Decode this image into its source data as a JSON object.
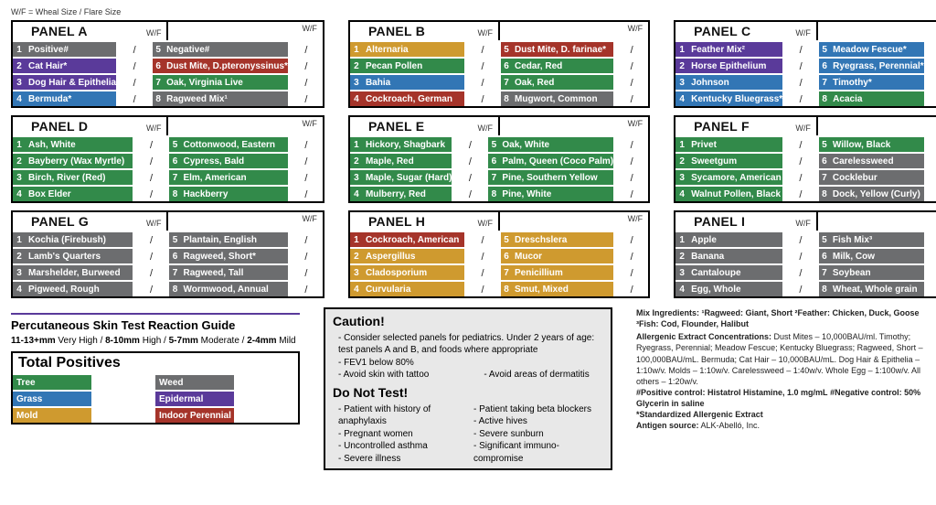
{
  "legend_top": "W/F = Wheal Size / Flare Size",
  "wf_header": "W/F",
  "wf_cell": "/",
  "colors": {
    "gray": "#6c6d6f",
    "purple": "#5a3a9a",
    "blue": "#3276b5",
    "green": "#328a4a",
    "red": "#a5342a",
    "gold": "#cf9a2f"
  },
  "panels": [
    {
      "title": "PANEL A",
      "left": [
        {
          "n": "1",
          "t": "Positive#",
          "c": "gray"
        },
        {
          "n": "2",
          "t": "Cat Hair*",
          "c": "purple"
        },
        {
          "n": "3",
          "t": "Dog Hair & Epithelia",
          "c": "purple"
        },
        {
          "n": "4",
          "t": "Bermuda*",
          "c": "blue"
        }
      ],
      "right": [
        {
          "n": "5",
          "t": "Negative#",
          "c": "gray"
        },
        {
          "n": "6",
          "t": "Dust Mite, D.pteronyssinus*",
          "c": "red"
        },
        {
          "n": "7",
          "t": "Oak, Virginia Live",
          "c": "green"
        },
        {
          "n": "8",
          "t": "Ragweed Mix¹",
          "c": "gray"
        }
      ]
    },
    {
      "title": "PANEL B",
      "left": [
        {
          "n": "1",
          "t": "Alternaria",
          "c": "gold"
        },
        {
          "n": "2",
          "t": "Pecan Pollen",
          "c": "green"
        },
        {
          "n": "3",
          "t": "Bahia",
          "c": "blue"
        },
        {
          "n": "4",
          "t": "Cockroach, German",
          "c": "red"
        }
      ],
      "right": [
        {
          "n": "5",
          "t": "Dust Mite, D. farinae*",
          "c": "red"
        },
        {
          "n": "6",
          "t": "Cedar, Red",
          "c": "green"
        },
        {
          "n": "7",
          "t": "Oak, Red",
          "c": "green"
        },
        {
          "n": "8",
          "t": "Mugwort, Common",
          "c": "gray"
        }
      ]
    },
    {
      "title": "PANEL C",
      "left": [
        {
          "n": "1",
          "t": "Feather Mix²",
          "c": "purple"
        },
        {
          "n": "2",
          "t": "Horse Epithelium",
          "c": "purple"
        },
        {
          "n": "3",
          "t": "Johnson",
          "c": "blue"
        },
        {
          "n": "4",
          "t": "Kentucky Bluegrass*",
          "c": "blue"
        }
      ],
      "right": [
        {
          "n": "5",
          "t": "Meadow Fescue*",
          "c": "blue"
        },
        {
          "n": "6",
          "t": "Ryegrass, Perennial*",
          "c": "blue"
        },
        {
          "n": "7",
          "t": "Timothy*",
          "c": "blue"
        },
        {
          "n": "8",
          "t": "Acacia",
          "c": "green"
        }
      ]
    },
    {
      "title": "PANEL D",
      "left": [
        {
          "n": "1",
          "t": "Ash, White",
          "c": "green"
        },
        {
          "n": "2",
          "t": "Bayberry (Wax Myrtle)",
          "c": "green"
        },
        {
          "n": "3",
          "t": "Birch, River (Red)",
          "c": "green"
        },
        {
          "n": "4",
          "t": "Box Elder",
          "c": "green"
        }
      ],
      "right": [
        {
          "n": "5",
          "t": "Cottonwood, Eastern",
          "c": "green"
        },
        {
          "n": "6",
          "t": "Cypress, Bald",
          "c": "green"
        },
        {
          "n": "7",
          "t": "Elm, American",
          "c": "green"
        },
        {
          "n": "8",
          "t": "Hackberry",
          "c": "green"
        }
      ]
    },
    {
      "title": "PANEL E",
      "left": [
        {
          "n": "1",
          "t": "Hickory, Shagbark",
          "c": "green"
        },
        {
          "n": "2",
          "t": "Maple, Red",
          "c": "green"
        },
        {
          "n": "3",
          "t": "Maple, Sugar (Hard)",
          "c": "green"
        },
        {
          "n": "4",
          "t": "Mulberry, Red",
          "c": "green"
        }
      ],
      "right": [
        {
          "n": "5",
          "t": "Oak, White",
          "c": "green"
        },
        {
          "n": "6",
          "t": "Palm, Queen (Coco Palm)",
          "c": "green"
        },
        {
          "n": "7",
          "t": "Pine, Southern Yellow",
          "c": "green"
        },
        {
          "n": "8",
          "t": "Pine, White",
          "c": "green"
        }
      ]
    },
    {
      "title": "PANEL F",
      "left": [
        {
          "n": "1",
          "t": "Privet",
          "c": "green"
        },
        {
          "n": "2",
          "t": "Sweetgum",
          "c": "green"
        },
        {
          "n": "3",
          "t": "Sycamore, American",
          "c": "green"
        },
        {
          "n": "4",
          "t": "Walnut Pollen, Black",
          "c": "green"
        }
      ],
      "right": [
        {
          "n": "5",
          "t": "Willow, Black",
          "c": "green"
        },
        {
          "n": "6",
          "t": "Carelessweed",
          "c": "gray"
        },
        {
          "n": "7",
          "t": "Cocklebur",
          "c": "gray"
        },
        {
          "n": "8",
          "t": "Dock, Yellow (Curly)",
          "c": "gray"
        }
      ]
    },
    {
      "title": "PANEL G",
      "left": [
        {
          "n": "1",
          "t": "Kochia (Firebush)",
          "c": "gray"
        },
        {
          "n": "2",
          "t": "Lamb's Quarters",
          "c": "gray"
        },
        {
          "n": "3",
          "t": "Marshelder, Burweed",
          "c": "gray"
        },
        {
          "n": "4",
          "t": "Pigweed, Rough",
          "c": "gray"
        }
      ],
      "right": [
        {
          "n": "5",
          "t": "Plantain, English",
          "c": "gray"
        },
        {
          "n": "6",
          "t": "Ragweed, Short*",
          "c": "gray"
        },
        {
          "n": "7",
          "t": "Ragweed, Tall",
          "c": "gray"
        },
        {
          "n": "8",
          "t": "Wormwood, Annual",
          "c": "gray"
        }
      ]
    },
    {
      "title": "PANEL H",
      "left": [
        {
          "n": "1",
          "t": "Cockroach, American",
          "c": "red"
        },
        {
          "n": "2",
          "t": "Aspergillus",
          "c": "gold"
        },
        {
          "n": "3",
          "t": "Cladosporium",
          "c": "gold"
        },
        {
          "n": "4",
          "t": "Curvularia",
          "c": "gold"
        }
      ],
      "right": [
        {
          "n": "5",
          "t": "Dreschslera",
          "c": "gold"
        },
        {
          "n": "6",
          "t": "Mucor",
          "c": "gold"
        },
        {
          "n": "7",
          "t": "Penicillium",
          "c": "gold"
        },
        {
          "n": "8",
          "t": "Smut, Mixed",
          "c": "gold"
        }
      ]
    },
    {
      "title": "PANEL I",
      "left": [
        {
          "n": "1",
          "t": "Apple",
          "c": "gray"
        },
        {
          "n": "2",
          "t": "Banana",
          "c": "gray"
        },
        {
          "n": "3",
          "t": "Cantaloupe",
          "c": "gray"
        },
        {
          "n": "4",
          "t": "Egg, Whole",
          "c": "gray"
        }
      ],
      "right": [
        {
          "n": "5",
          "t": "Fish Mix³",
          "c": "gray"
        },
        {
          "n": "6",
          "t": "Milk, Cow",
          "c": "gray"
        },
        {
          "n": "7",
          "t": "Soybean",
          "c": "gray"
        },
        {
          "n": "8",
          "t": "Wheat, Whole grain",
          "c": "gray"
        }
      ]
    }
  ],
  "reaction_guide": {
    "title": "Percutaneous Skin Test Reaction Guide",
    "levels": [
      {
        "range": "11-13+mm",
        "label": "Very High"
      },
      {
        "range": "8-10mm",
        "label": "High"
      },
      {
        "range": "5-7mm",
        "label": "Moderate"
      },
      {
        "range": "2-4mm",
        "label": "Mild"
      }
    ]
  },
  "totals": {
    "title": "Total Positives",
    "rows_left": [
      {
        "t": "Tree",
        "c": "green"
      },
      {
        "t": "Grass",
        "c": "blue"
      },
      {
        "t": "Mold",
        "c": "gold"
      }
    ],
    "rows_right": [
      {
        "t": "Weed",
        "c": "gray"
      },
      {
        "t": "Epidermal",
        "c": "purple"
      },
      {
        "t": "Indoor Perennial",
        "c": "red"
      }
    ]
  },
  "caution": {
    "title": "Caution!",
    "items": [
      "Consider selected panels for pediatrics. Under 2 years of age: test panels A and B, and foods where appropriate",
      "FEV1 below 80%",
      "Avoid skin with tattoo",
      "Avoid areas of dermatitis"
    ],
    "dontest_title": "Do Not Test!",
    "dontest_left": [
      "Patient with history of anaphylaxis",
      "Pregnant women",
      "Uncontrolled asthma",
      "Severe illness"
    ],
    "dontest_right": [
      "Patient taking beta blockers",
      "Active hives",
      "Severe sunburn",
      "Significant immuno-compromise"
    ]
  },
  "fineprint": {
    "mix": "Mix Ingredients: ¹Ragweed: Giant, Short   ²Feather: Chicken, Duck, Goose   ³Fish: Cod, Flounder, Halibut",
    "conc_label": "Allergenic Extract Concentrations:",
    "conc_text": " Dust Mites – 10,000BAU/ml.  Timothy; Ryegrass, Perennial; Meadow Fescue; Kentucky Bluegrass; Ragweed, Short – 100,000BAU/mL.  Bermuda; Cat Hair – 10,000BAU/mL.  Dog Hair & Epithelia – 1:10w/v.  Molds – 1:10w/v.  Carelessweed – 1:40w/v.  Whole Egg – 1:100w/v.  All others – 1:20w/v.",
    "pos": "#Positive control: Histatrol Histamine, 1.0 mg/mL",
    "neg": "#Negative control: 50% Glycerin in saline",
    "std": "*Standardized Allergenic Extract",
    "src_label": "Antigen source:",
    "src_text": " ALK-Abelló, Inc."
  }
}
